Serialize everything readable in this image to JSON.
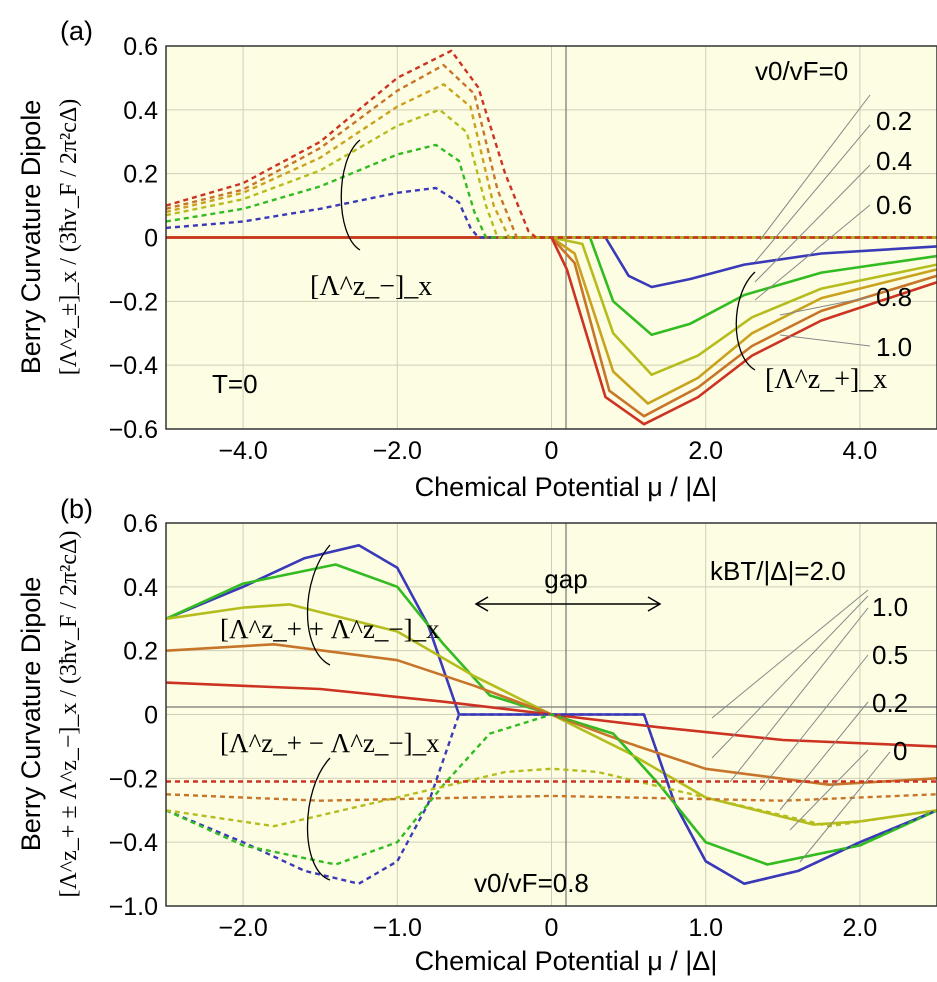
{
  "panels": [
    {
      "letter": "(a)",
      "ylabel": "Berry Curvature Dipole",
      "ylabel_units": "[Λ^z_±]_x / (3ħv_F / 2π²cΔ)",
      "xlabel": "Chemical Potential μ / |Δ|",
      "xticks": [
        "−4.0",
        "−2.0",
        "0",
        "2.0",
        "4.0"
      ],
      "yticks": [
        "0.6",
        "0.4",
        "0.2",
        "0",
        "−0.2",
        "−0.4",
        "−0.6"
      ],
      "condition": "T=0",
      "legend_title": "v0/vF=0",
      "legend_values": [
        "0.2",
        "0.4",
        "0.6",
        "0.8",
        "1.0"
      ],
      "group_minus": "[Λ^z_−]_x",
      "group_plus": "[Λ^z_+]_x"
    },
    {
      "letter": "(b)",
      "ylabel": "Berry Curvature Dipole",
      "ylabel_units": "[Λ^z_+ ± Λ^z_−]_x / (3ħv_F / 2π²cΔ)",
      "xlabel": "Chemical Potential μ / |Δ|",
      "xticks": [
        "−2.0",
        "−1.0",
        "0",
        "1.0",
        "2.0"
      ],
      "yticks": [
        "0.6",
        "0.4",
        "0.2",
        "0",
        "−0.2",
        "−0.4",
        "−1.0"
      ],
      "condition": "v0/vF=0.8",
      "legend_title": "kBT/|Δ|=2.0",
      "legend_values": [
        "1.0",
        "0.5",
        "0.2",
        "0"
      ],
      "group_sum": "[Λ^z_+ + Λ^z_−]_x",
      "group_diff": "[Λ^z_+ − Λ^z_−]_x",
      "gap_label": "gap"
    }
  ],
  "colors": {
    "background": "#fdfde3",
    "v0_0": "#3a3ab8",
    "v0_0.2": "#33bb22",
    "v0_0.4": "#b5bd1e",
    "v0_0.6": "#c9a21e",
    "v0_0.8": "#c7752a",
    "v0_1.0": "#cc3322",
    "T_0": "#3a3ab8",
    "T_0.2": "#33bb22",
    "T_0.5": "#b5bd1e",
    "T_1.0": "#c7752a",
    "T_2.0": "#cc3322"
  },
  "chart_data": [
    {
      "type": "line",
      "xlim": [
        -5,
        5
      ],
      "ylim": [
        -0.6,
        0.6
      ],
      "grid": true,
      "series": [
        {
          "name": "v0/vF=0",
          "style": "solid",
          "color_key": "v0_0",
          "points": [
            [
              -5,
              0
            ],
            [
              0,
              0
            ],
            [
              0.7,
              0
            ],
            [
              1.0,
              -0.12
            ],
            [
              1.3,
              -0.155
            ],
            [
              1.8,
              -0.13
            ],
            [
              2.5,
              -0.085
            ],
            [
              3.5,
              -0.05
            ],
            [
              5,
              -0.028
            ]
          ]
        },
        {
          "name": "0.2",
          "style": "solid",
          "color_key": "v0_0.2",
          "points": [
            [
              -5,
              0
            ],
            [
              0,
              0
            ],
            [
              0.5,
              0
            ],
            [
              0.8,
              -0.2
            ],
            [
              1.3,
              -0.305
            ],
            [
              1.8,
              -0.27
            ],
            [
              2.5,
              -0.18
            ],
            [
              3.5,
              -0.11
            ],
            [
              5,
              -0.058
            ]
          ]
        },
        {
          "name": "0.4",
          "style": "solid",
          "color_key": "v0_0.4",
          "points": [
            [
              -5,
              0
            ],
            [
              0,
              0
            ],
            [
              0.4,
              -0.02
            ],
            [
              0.8,
              -0.3
            ],
            [
              1.3,
              -0.43
            ],
            [
              1.9,
              -0.37
            ],
            [
              2.6,
              -0.25
            ],
            [
              3.5,
              -0.16
            ],
            [
              5,
              -0.085
            ]
          ]
        },
        {
          "name": "0.6",
          "style": "solid",
          "color_key": "v0_0.6",
          "points": [
            [
              -5,
              0
            ],
            [
              0,
              0
            ],
            [
              0.3,
              -0.05
            ],
            [
              0.8,
              -0.42
            ],
            [
              1.25,
              -0.52
            ],
            [
              1.9,
              -0.44
            ],
            [
              2.6,
              -0.3
            ],
            [
              3.5,
              -0.19
            ],
            [
              5,
              -0.1
            ]
          ]
        },
        {
          "name": "0.8",
          "style": "solid",
          "color_key": "v0_0.8",
          "points": [
            [
              -5,
              0
            ],
            [
              0,
              0
            ],
            [
              0.3,
              -0.08
            ],
            [
              0.75,
              -0.48
            ],
            [
              1.2,
              -0.56
            ],
            [
              1.9,
              -0.47
            ],
            [
              2.6,
              -0.34
            ],
            [
              3.5,
              -0.23
            ],
            [
              5,
              -0.12
            ]
          ]
        },
        {
          "name": "1.0",
          "style": "solid",
          "color_key": "v0_1.0",
          "points": [
            [
              -5,
              0
            ],
            [
              0,
              0
            ],
            [
              0.2,
              -0.1
            ],
            [
              0.7,
              -0.5
            ],
            [
              1.2,
              -0.585
            ],
            [
              1.9,
              -0.5
            ],
            [
              2.6,
              -0.37
            ],
            [
              3.5,
              -0.26
            ],
            [
              5,
              -0.14
            ]
          ]
        },
        {
          "name": "v0/vF=0 (Λ−)",
          "style": "dashed",
          "color_key": "v0_0",
          "points": [
            [
              -5,
              0.03
            ],
            [
              -4,
              0.05
            ],
            [
              -3,
              0.09
            ],
            [
              -2,
              0.14
            ],
            [
              -1.5,
              0.155
            ],
            [
              -1.2,
              0.11
            ],
            [
              -1.05,
              0.03
            ],
            [
              -0.95,
              0
            ],
            [
              5,
              0
            ]
          ]
        },
        {
          "name": "0.2 (Λ−)",
          "style": "dashed",
          "color_key": "v0_0.2",
          "points": [
            [
              -5,
              0.05
            ],
            [
              -4,
              0.09
            ],
            [
              -3,
              0.16
            ],
            [
              -2,
              0.26
            ],
            [
              -1.5,
              0.29
            ],
            [
              -1.2,
              0.24
            ],
            [
              -1,
              0.08
            ],
            [
              -0.85,
              0
            ],
            [
              5,
              0
            ]
          ]
        },
        {
          "name": "0.4 (Λ−)",
          "style": "dashed",
          "color_key": "v0_0.4",
          "points": [
            [
              -5,
              0.07
            ],
            [
              -4,
              0.12
            ],
            [
              -3,
              0.21
            ],
            [
              -2,
              0.35
            ],
            [
              -1.45,
              0.4
            ],
            [
              -1.1,
              0.33
            ],
            [
              -0.85,
              0.1
            ],
            [
              -0.7,
              0
            ],
            [
              5,
              0
            ]
          ]
        },
        {
          "name": "0.6 (Λ−)",
          "style": "dashed",
          "color_key": "v0_0.6",
          "points": [
            [
              -5,
              0.08
            ],
            [
              -4,
              0.14
            ],
            [
              -3,
              0.25
            ],
            [
              -2,
              0.41
            ],
            [
              -1.4,
              0.48
            ],
            [
              -1.05,
              0.41
            ],
            [
              -0.75,
              0.1
            ],
            [
              -0.55,
              0
            ],
            [
              5,
              0
            ]
          ]
        },
        {
          "name": "0.8 (Λ−)",
          "style": "dashed",
          "color_key": "v0_0.8",
          "points": [
            [
              -5,
              0.09
            ],
            [
              -4,
              0.15
            ],
            [
              -3,
              0.28
            ],
            [
              -2,
              0.46
            ],
            [
              -1.4,
              0.54
            ],
            [
              -1.0,
              0.45
            ],
            [
              -0.7,
              0.15
            ],
            [
              -0.45,
              0
            ],
            [
              5,
              0
            ]
          ]
        },
        {
          "name": "1.0 (Λ−)",
          "style": "dashed",
          "color_key": "v0_1.0",
          "points": [
            [
              -5,
              0.1
            ],
            [
              -4,
              0.17
            ],
            [
              -3,
              0.3
            ],
            [
              -2,
              0.5
            ],
            [
              -1.3,
              0.585
            ],
            [
              -0.95,
              0.47
            ],
            [
              -0.6,
              0.2
            ],
            [
              -0.3,
              0.02
            ],
            [
              -0.2,
              0
            ],
            [
              5,
              0
            ]
          ]
        }
      ]
    },
    {
      "type": "line",
      "xlim": [
        -2.5,
        2.5
      ],
      "ylim": [
        -1.0,
        0.6
      ],
      "ytick_values": [
        0.6,
        0.4,
        0.2,
        0,
        -0.2,
        -0.4,
        -1.0
      ],
      "grid": true,
      "series": [
        {
          "name": "kBT/|Δ|=0 (sum)",
          "style": "solid",
          "color_key": "T_0",
          "points": [
            [
              -2.5,
              0.3
            ],
            [
              -2,
              0.4
            ],
            [
              -1.6,
              0.49
            ],
            [
              -1.25,
              0.53
            ],
            [
              -1,
              0.46
            ],
            [
              -0.8,
              0.28
            ],
            [
              -0.6,
              0
            ],
            [
              0.6,
              0
            ],
            [
              0.8,
              -0.28
            ],
            [
              1,
              -0.46
            ],
            [
              1.25,
              -0.53
            ],
            [
              1.6,
              -0.49
            ],
            [
              2,
              -0.4
            ],
            [
              2.5,
              -0.3
            ]
          ]
        },
        {
          "name": "0.2 (sum)",
          "style": "solid",
          "color_key": "T_0.2",
          "points": [
            [
              -2.5,
              0.3
            ],
            [
              -2,
              0.41
            ],
            [
              -1.4,
              0.47
            ],
            [
              -1,
              0.4
            ],
            [
              -0.7,
              0.22
            ],
            [
              -0.4,
              0.06
            ],
            [
              0,
              0
            ],
            [
              0.4,
              -0.06
            ],
            [
              0.7,
              -0.22
            ],
            [
              1,
              -0.4
            ],
            [
              1.4,
              -0.47
            ],
            [
              2,
              -0.41
            ],
            [
              2.5,
              -0.3
            ]
          ]
        },
        {
          "name": "0.5 (sum)",
          "style": "solid",
          "color_key": "T_0.5",
          "points": [
            [
              -2.5,
              0.3
            ],
            [
              -2,
              0.335
            ],
            [
              -1.7,
              0.345
            ],
            [
              -1,
              0.26
            ],
            [
              -0.5,
              0.12
            ],
            [
              0,
              0
            ],
            [
              0.5,
              -0.12
            ],
            [
              1,
              -0.26
            ],
            [
              1.7,
              -0.345
            ],
            [
              2,
              -0.335
            ],
            [
              2.5,
              -0.3
            ]
          ]
        },
        {
          "name": "1.0 (sum)",
          "style": "solid",
          "color_key": "T_1.0",
          "points": [
            [
              -2.5,
              0.2
            ],
            [
              -1.8,
              0.22
            ],
            [
              -1,
              0.17
            ],
            [
              -0.5,
              0.09
            ],
            [
              0,
              0
            ],
            [
              0.5,
              -0.09
            ],
            [
              1,
              -0.17
            ],
            [
              1.8,
              -0.22
            ],
            [
              2.5,
              -0.2
            ]
          ]
        },
        {
          "name": "2.0 (sum)",
          "style": "solid",
          "color_key": "T_2.0",
          "points": [
            [
              -2.5,
              0.1
            ],
            [
              -1.5,
              0.08
            ],
            [
              -0.7,
              0.04
            ],
            [
              0,
              0
            ],
            [
              0.7,
              -0.04
            ],
            [
              1.5,
              -0.08
            ],
            [
              2.5,
              -0.1
            ]
          ]
        },
        {
          "name": "kBT/|Δ|=0 (diff)",
          "style": "dashed",
          "color_key": "T_0",
          "points": [
            [
              -2.5,
              -0.3
            ],
            [
              -2,
              -0.4
            ],
            [
              -1.6,
              -0.49
            ],
            [
              -1.25,
              -0.53
            ],
            [
              -1,
              -0.46
            ],
            [
              -0.8,
              -0.28
            ],
            [
              -0.6,
              0
            ],
            [
              0.6,
              0
            ],
            [
              0.8,
              -0.28
            ],
            [
              1,
              -0.46
            ],
            [
              1.25,
              -0.53
            ],
            [
              1.6,
              -0.49
            ],
            [
              2,
              -0.4
            ],
            [
              2.5,
              -0.3
            ]
          ]
        },
        {
          "name": "0.2 (diff)",
          "style": "dashed",
          "color_key": "T_0.2",
          "points": [
            [
              -2.5,
              -0.3
            ],
            [
              -2,
              -0.41
            ],
            [
              -1.4,
              -0.47
            ],
            [
              -1,
              -0.4
            ],
            [
              -0.7,
              -0.22
            ],
            [
              -0.4,
              -0.06
            ],
            [
              0,
              0
            ],
            [
              0.4,
              -0.06
            ],
            [
              0.7,
              -0.22
            ],
            [
              1,
              -0.4
            ],
            [
              1.4,
              -0.47
            ],
            [
              2,
              -0.41
            ],
            [
              2.5,
              -0.3
            ]
          ]
        },
        {
          "name": "0.5 (diff)",
          "style": "dashed",
          "color_key": "T_0.5",
          "points": [
            [
              -2.5,
              -0.3
            ],
            [
              -1.8,
              -0.35
            ],
            [
              -1,
              -0.26
            ],
            [
              -0.3,
              -0.18
            ],
            [
              0,
              -0.17
            ],
            [
              0.3,
              -0.18
            ],
            [
              1,
              -0.26
            ],
            [
              1.8,
              -0.35
            ],
            [
              2.5,
              -0.3
            ]
          ]
        },
        {
          "name": "1.0 (diff)",
          "style": "dashed",
          "color_key": "T_1.0",
          "points": [
            [
              -2.5,
              -0.25
            ],
            [
              -1.5,
              -0.27
            ],
            [
              0,
              -0.255
            ],
            [
              1.5,
              -0.27
            ],
            [
              2.5,
              -0.25
            ]
          ]
        },
        {
          "name": "2.0 (diff)",
          "style": "dashed",
          "color_key": "T_2.0",
          "points": [
            [
              -2.5,
              -0.21
            ],
            [
              0,
              -0.21
            ],
            [
              2.5,
              -0.21
            ]
          ]
        }
      ]
    }
  ]
}
